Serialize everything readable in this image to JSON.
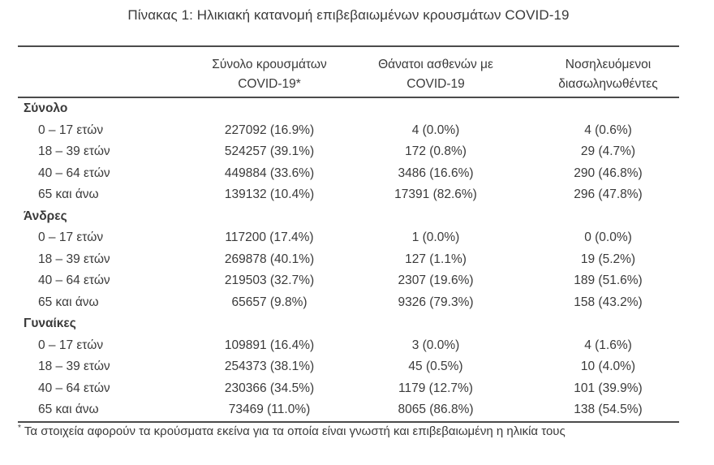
{
  "title": "Πίνακας 1: Ηλικιακή κατανομή επιβεβαιωμένων κρουσμάτων COVID-19",
  "table": {
    "column_headers": {
      "cases": {
        "line1": "Σύνολο κρουσμάτων",
        "line2": "COVID-19*"
      },
      "deaths": {
        "line1": "Θάνατοι ασθενών με",
        "line2": "COVID-19"
      },
      "intubated": {
        "line1": "Νοσηλευόμενοι",
        "line2": "διασωληνωθέντες"
      }
    },
    "sections": [
      {
        "label": "Σύνολο",
        "rows": [
          {
            "age": "0 – 17 ετών",
            "cases": "227092 (16.9%)",
            "deaths": "4 (0.0%)",
            "intubated": "4 (0.6%)"
          },
          {
            "age": "18 – 39 ετών",
            "cases": "524257 (39.1%)",
            "deaths": "172 (0.8%)",
            "intubated": "29 (4.7%)"
          },
          {
            "age": "40 – 64 ετών",
            "cases": "449884 (33.6%)",
            "deaths": "3486 (16.6%)",
            "intubated": "290 (46.8%)"
          },
          {
            "age": "65 και άνω",
            "cases": "139132 (10.4%)",
            "deaths": "17391 (82.6%)",
            "intubated": "296 (47.8%)"
          }
        ]
      },
      {
        "label": "Άνδρες",
        "rows": [
          {
            "age": "0 – 17 ετών",
            "cases": "117200 (17.4%)",
            "deaths": "1 (0.0%)",
            "intubated": "0 (0.0%)"
          },
          {
            "age": "18 – 39 ετών",
            "cases": "269878 (40.1%)",
            "deaths": "127 (1.1%)",
            "intubated": "19 (5.2%)"
          },
          {
            "age": "40 – 64 ετών",
            "cases": "219503 (32.7%)",
            "deaths": "2307 (19.6%)",
            "intubated": "189 (51.6%)"
          },
          {
            "age": "65 και άνω",
            "cases": "65657 (9.8%)",
            "deaths": "9326 (79.3%)",
            "intubated": "158 (43.2%)"
          }
        ]
      },
      {
        "label": "Γυναίκες",
        "rows": [
          {
            "age": "0 – 17 ετών",
            "cases": "109891 (16.4%)",
            "deaths": "3 (0.0%)",
            "intubated": "4 (1.6%)"
          },
          {
            "age": "18 – 39 ετών",
            "cases": "254373 (38.1%)",
            "deaths": "45 (0.5%)",
            "intubated": "10 (4.0%)"
          },
          {
            "age": "40 – 64 ετών",
            "cases": "230366 (34.5%)",
            "deaths": "1179 (12.7%)",
            "intubated": "101 (39.9%)"
          },
          {
            "age": "65 και άνω",
            "cases": "73469 (11.0%)",
            "deaths": "8065 (86.8%)",
            "intubated": "138 (54.5%)"
          }
        ]
      }
    ]
  },
  "footnote": {
    "marker": "*",
    "text": "Τα στοιχεία αφορούν τα κρούσματα εκείνα για τα οποία είναι γνωστή και επιβεβαιωμένη η ηλικία τους"
  },
  "colors": {
    "text": "#3a3a3a",
    "rule": "#4b4b4b",
    "background": "#ffffff"
  }
}
